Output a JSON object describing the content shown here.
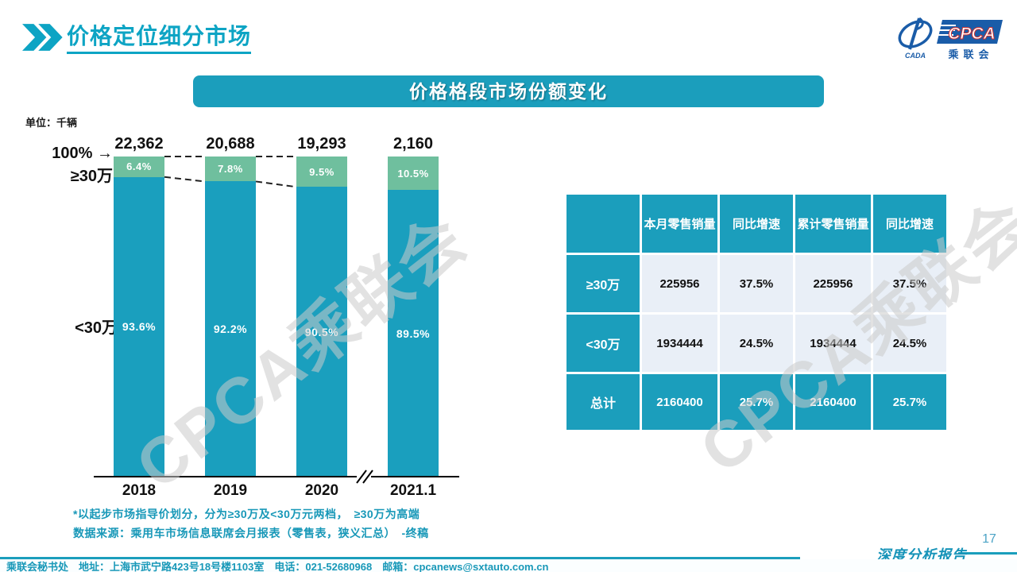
{
  "page": {
    "title": "价格定位细分市场",
    "banner": "价格格段市场份额变化",
    "unit_label": "单位：千辆",
    "footnote1": "*以起步市场指导价划分，分为≥30万及<30万元两档，　≥30万为高端",
    "footnote2": "数据来源：乘用车市场信息联席会月报表（零售表，狭义汇总）　-终稿",
    "footer_text": "乘联会秘书处　地址：上海市武宁路423号18号楼1103室　电话：021-52680968　邮箱：cpcanews@sxtauto.com.cn",
    "report_label": "深度分析报告",
    "page_number": "17",
    "watermark": "CPCA乘联会"
  },
  "logo": {
    "cada": "CADA",
    "cpca": "CPCA",
    "sub": "乘联会"
  },
  "chart_data": {
    "type": "bar",
    "stacked": true,
    "title": "价格格段市场份额变化",
    "unit": "千辆",
    "categories": [
      "2018",
      "2019",
      "2020",
      "2021.1"
    ],
    "totals_label": [
      "22,362",
      "20,688",
      "19,293",
      "2,160"
    ],
    "series": [
      {
        "name": "≥30万",
        "values": [
          6.4,
          7.8,
          9.5,
          10.5
        ],
        "color": "#6FBF9E"
      },
      {
        "name": "<30万",
        "values": [
          93.6,
          92.2,
          90.5,
          89.5
        ],
        "color": "#1A9FBE"
      }
    ],
    "value_suffix": "%",
    "ylim": [
      0,
      100
    ],
    "axis_annotation": "100% →",
    "axis_break_after_index": 2,
    "grid": false,
    "legend_position": "left-of-bars"
  },
  "table": {
    "headers": [
      "",
      "本月零售销量",
      "同比增速",
      "累计零售销量",
      "同比增速"
    ],
    "rows": [
      {
        "label": "≥30万",
        "cells": [
          "225956",
          "37.5%",
          "225956",
          "37.5%"
        ],
        "type": "light"
      },
      {
        "label": "<30万",
        "cells": [
          "1934444",
          "24.5%",
          "1934444",
          "24.5%"
        ],
        "type": "light"
      },
      {
        "label": "总计",
        "cells": [
          "2160400",
          "25.7%",
          "2160400",
          "25.7%"
        ],
        "type": "total"
      }
    ]
  },
  "colors": {
    "teal": "#1B9EBC",
    "green": "#6FBF9E",
    "title": "#0DA4C4",
    "table_light": "#E9EFF7"
  }
}
